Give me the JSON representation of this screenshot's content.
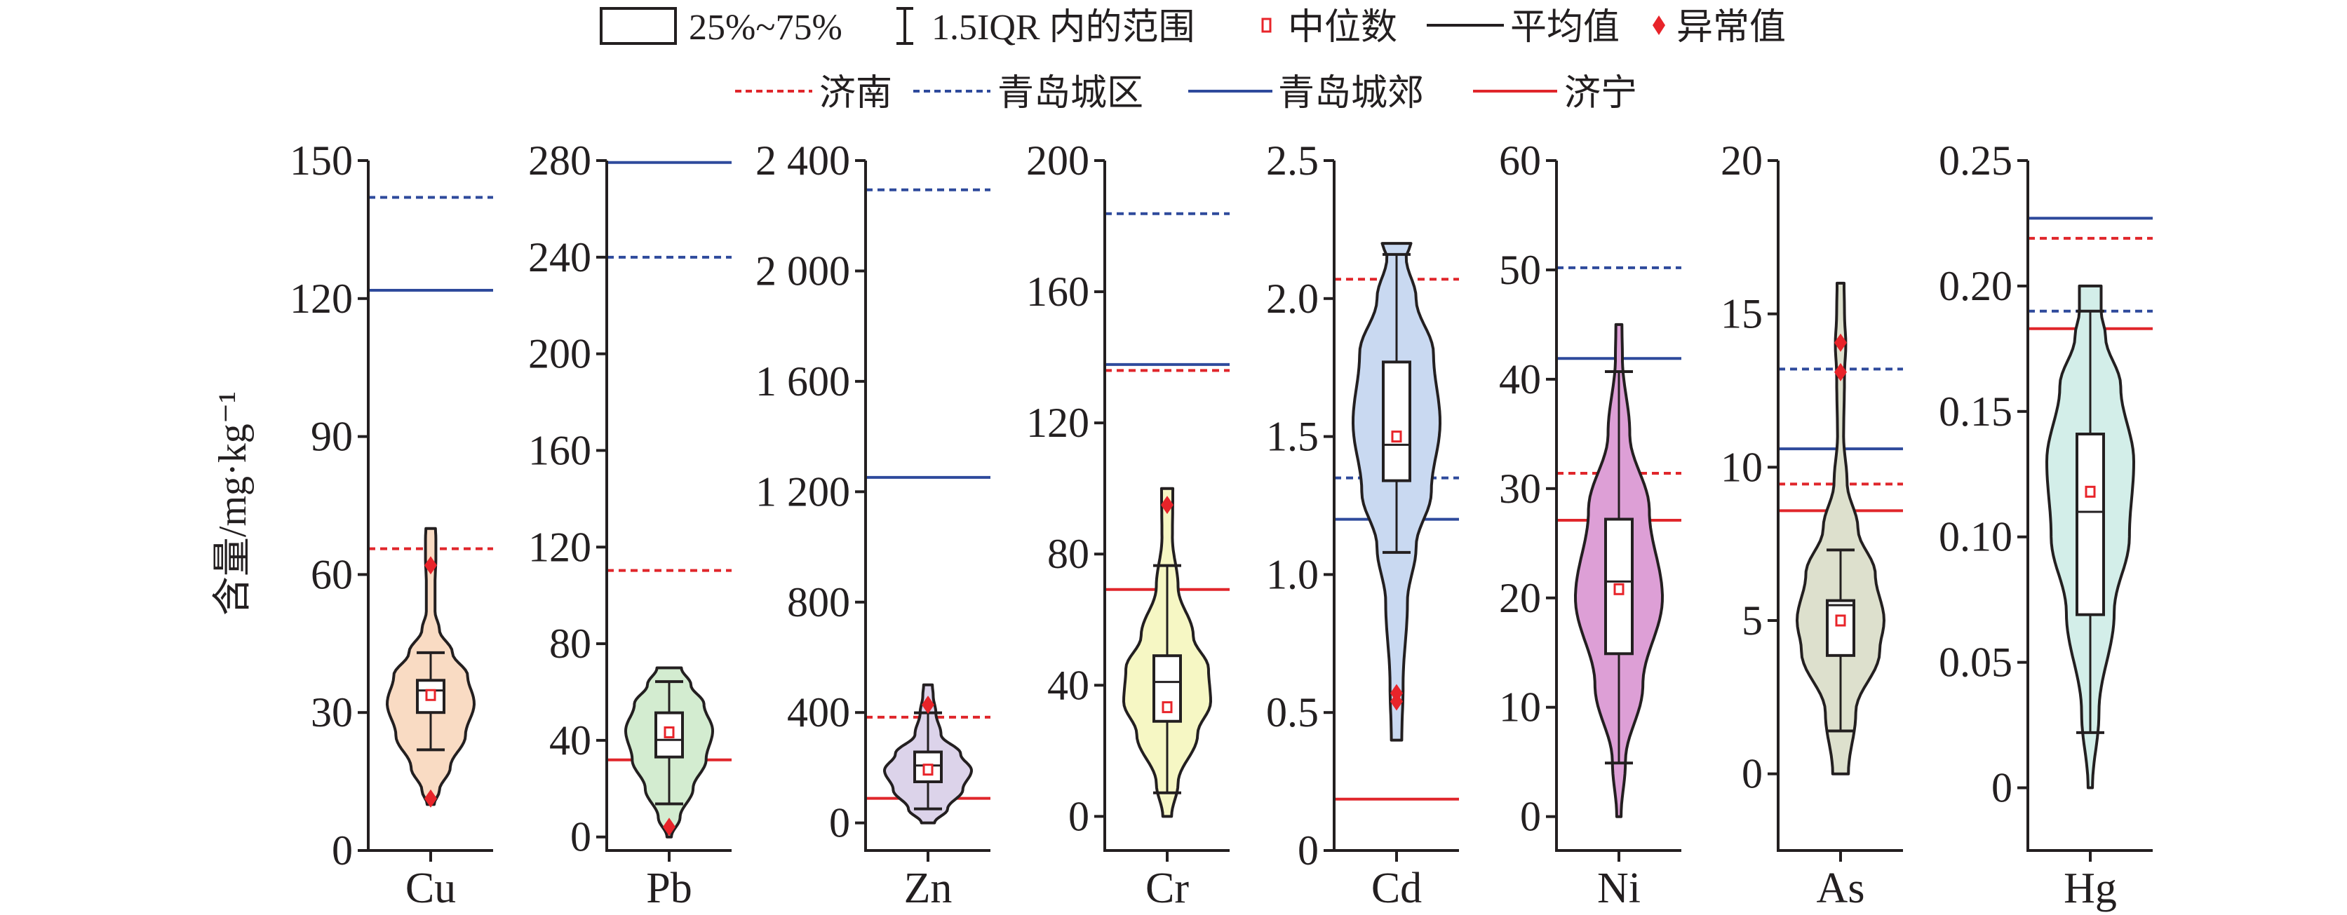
{
  "legend": {
    "row1": {
      "box": "25%~75%",
      "whisker": "1.5IQR 内的范围",
      "median": "中位数",
      "mean": "平均值",
      "outlier": "异常值"
    },
    "row2": {
      "jinan": "济南",
      "qingdao_urban": "青岛城区",
      "qingdao_suburb": "青岛城郊",
      "jining": "济宁"
    }
  },
  "colors": {
    "blue": "#2e4a9c",
    "red": "#e0262b",
    "axis": "#231f20",
    "marker": "#e8242a"
  },
  "chart_data": {
    "type": "violin",
    "ylabel": "含量/mg·kg⁻¹",
    "reference_lines": {
      "jinan": {
        "color": "red",
        "style": "dashed"
      },
      "qingdao_urban": {
        "color": "blue",
        "style": "dashed"
      },
      "qingdao_suburb": {
        "color": "blue",
        "style": "solid"
      },
      "jining": {
        "color": "red",
        "style": "solid"
      }
    },
    "panels": [
      {
        "name": "Cu",
        "fill": "#f9dbc3",
        "ylim": [
          0,
          150
        ],
        "ticks": [
          {
            "v": 0,
            "label": "0"
          },
          {
            "v": 30,
            "label": "30"
          },
          {
            "v": 60,
            "label": "60"
          },
          {
            "v": 90,
            "label": "90"
          },
          {
            "v": 120,
            "label": "120"
          },
          {
            "v": 150,
            "label": "150"
          }
        ],
        "min": 10,
        "max": 70,
        "whisker_low": 21.9,
        "whisker_high": 43,
        "q1": 30,
        "q3": 37,
        "median": 34.8,
        "mean": 33.8,
        "outliers": [
          62,
          11.3
        ],
        "refs": {
          "jinan": 65.6,
          "qingdao_urban": 142,
          "qingdao_suburb": 121.8,
          "jining": null
        },
        "density": [
          [
            10,
            0.08
          ],
          [
            13,
            0.2
          ],
          [
            18,
            0.45
          ],
          [
            25,
            0.8
          ],
          [
            32,
            1
          ],
          [
            38,
            0.85
          ],
          [
            43,
            0.5
          ],
          [
            48,
            0.2
          ],
          [
            52,
            0.1
          ],
          [
            58,
            0.1
          ],
          [
            64,
            0.12
          ],
          [
            68,
            0.12
          ],
          [
            70,
            0.11
          ]
        ]
      },
      {
        "name": "Pb",
        "fill": "#d3ecd0",
        "ylim": [
          -5.6,
          280
        ],
        "ticks": [
          {
            "v": 0,
            "label": "0"
          },
          {
            "v": 40,
            "label": "40"
          },
          {
            "v": 80,
            "label": "80"
          },
          {
            "v": 120,
            "label": "120"
          },
          {
            "v": 160,
            "label": "160"
          },
          {
            "v": 200,
            "label": "200"
          },
          {
            "v": 240,
            "label": "240"
          },
          {
            "v": 280,
            "label": "280"
          }
        ],
        "min": 0,
        "max": 70,
        "whisker_low": 13.7,
        "whisker_high": 64.3,
        "q1": 33.1,
        "q3": 51.4,
        "median": 40.2,
        "mean": 43.3,
        "outliers": [
          4.2
        ],
        "refs": {
          "jinan": 110.3,
          "qingdao_urban": 240,
          "qingdao_suburb": 279.2,
          "jining": 31.9
        },
        "density": [
          [
            0,
            0.05
          ],
          [
            8,
            0.25
          ],
          [
            20,
            0.55
          ],
          [
            32,
            0.85
          ],
          [
            44,
            1
          ],
          [
            55,
            0.8
          ],
          [
            63,
            0.5
          ],
          [
            70,
            0.28
          ]
        ]
      },
      {
        "name": "Zn",
        "fill": "#dcd3ea",
        "ylim": [
          -100,
          2400
        ],
        "ticks": [
          {
            "v": 0,
            "label": "0"
          },
          {
            "v": 400,
            "label": "400"
          },
          {
            "v": 800,
            "label": "800"
          },
          {
            "v": 1200,
            "label": "1 200"
          },
          {
            "v": 1600,
            "label": "1 600"
          },
          {
            "v": 2000,
            "label": "2 000"
          },
          {
            "v": 2400,
            "label": "2 400"
          }
        ],
        "min": 0,
        "max": 500,
        "whisker_low": 51,
        "whisker_high": 399,
        "q1": 149,
        "q3": 257,
        "median": 208,
        "mean": 193,
        "outliers": [
          428
        ],
        "refs": {
          "jinan": 383,
          "qingdao_urban": 2294,
          "qingdao_suburb": 1252,
          "jining": 89
        },
        "density": [
          [
            0,
            0.15
          ],
          [
            50,
            0.45
          ],
          [
            120,
            0.8
          ],
          [
            190,
            1
          ],
          [
            250,
            0.75
          ],
          [
            320,
            0.3
          ],
          [
            400,
            0.18
          ],
          [
            460,
            0.12
          ],
          [
            500,
            0.1
          ]
        ]
      },
      {
        "name": "Cr",
        "fill": "#f6f7c4",
        "ylim": [
          -10.4,
          200
        ],
        "ticks": [
          {
            "v": 0,
            "label": "0"
          },
          {
            "v": 40,
            "label": "40"
          },
          {
            "v": 80,
            "label": "80"
          },
          {
            "v": 120,
            "label": "120"
          },
          {
            "v": 160,
            "label": "160"
          },
          {
            "v": 200,
            "label": "200"
          }
        ],
        "min": 0,
        "max": 100,
        "whisker_low": 7.2,
        "whisker_high": 76.5,
        "q1": 29,
        "q3": 49,
        "median": 41,
        "mean": 33.3,
        "outliers": [
          95
        ],
        "refs": {
          "jinan": 136,
          "qingdao_urban": 183.8,
          "qingdao_suburb": 137.8,
          "jining": 69.2
        },
        "density": [
          [
            0,
            0.1
          ],
          [
            10,
            0.25
          ],
          [
            25,
            0.7
          ],
          [
            35,
            1
          ],
          [
            45,
            0.95
          ],
          [
            55,
            0.6
          ],
          [
            70,
            0.25
          ],
          [
            85,
            0.12
          ],
          [
            100,
            0.13
          ]
        ]
      },
      {
        "name": "Cd",
        "fill": "#c9d9f1",
        "ylim": [
          0,
          2.5
        ],
        "ticks": [
          {
            "v": 0,
            "label": "0"
          },
          {
            "v": 0.5,
            "label": "0.5"
          },
          {
            "v": 1,
            "label": "1.0"
          },
          {
            "v": 1.5,
            "label": "1.5"
          },
          {
            "v": 2,
            "label": "2.0"
          },
          {
            "v": 2.5,
            "label": "2.5"
          }
        ],
        "min": 0.4,
        "max": 2.2,
        "whisker_low": 1.08,
        "whisker_high": 2.16,
        "q1": 1.34,
        "q3": 1.77,
        "median": 1.47,
        "mean": 1.5,
        "outliers": [
          0.57,
          0.54
        ],
        "refs": {
          "jinan": 2.07,
          "qingdao_urban": 1.35,
          "qingdao_suburb": 1.2,
          "jining": 0.186
        },
        "density": [
          [
            0.4,
            0.12
          ],
          [
            0.6,
            0.15
          ],
          [
            0.9,
            0.25
          ],
          [
            1.1,
            0.45
          ],
          [
            1.3,
            0.8
          ],
          [
            1.55,
            1
          ],
          [
            1.8,
            0.85
          ],
          [
            2.0,
            0.45
          ],
          [
            2.15,
            0.22
          ],
          [
            2.2,
            0.33
          ]
        ]
      },
      {
        "name": "Ni",
        "fill": "#dd9fd6",
        "ylim": [
          -3.1,
          60
        ],
        "ticks": [
          {
            "v": 0,
            "label": "0"
          },
          {
            "v": 10,
            "label": "10"
          },
          {
            "v": 20,
            "label": "20"
          },
          {
            "v": 30,
            "label": "30"
          },
          {
            "v": 40,
            "label": "40"
          },
          {
            "v": 50,
            "label": "50"
          },
          {
            "v": 60,
            "label": "60"
          }
        ],
        "min": 0,
        "max": 45,
        "whisker_low": 4.9,
        "whisker_high": 40.7,
        "q1": 14.9,
        "q3": 27.2,
        "median": 21.5,
        "mean": 20.8,
        "outliers": [],
        "refs": {
          "jinan": 31.4,
          "qingdao_urban": 50.2,
          "qingdao_suburb": 41.9,
          "jining": 27.1
        },
        "density": [
          [
            0,
            0.05
          ],
          [
            5,
            0.15
          ],
          [
            12,
            0.55
          ],
          [
            20,
            1
          ],
          [
            28,
            0.7
          ],
          [
            35,
            0.25
          ],
          [
            42,
            0.08
          ],
          [
            45,
            0.07
          ]
        ]
      },
      {
        "name": "As",
        "fill": "#dde0cd",
        "ylim": [
          -2.5,
          20
        ],
        "ticks": [
          {
            "v": 0,
            "label": "0"
          },
          {
            "v": 5,
            "label": "5"
          },
          {
            "v": 10,
            "label": "10"
          },
          {
            "v": 15,
            "label": "15"
          },
          {
            "v": 20,
            "label": "20"
          }
        ],
        "min": 0,
        "max": 16,
        "whisker_low": 1.4,
        "whisker_high": 7.3,
        "q1": 3.86,
        "q3": 5.65,
        "median": 5.5,
        "mean": 5.0,
        "outliers": [
          14.06,
          13.1
        ],
        "refs": {
          "jinan": 9.45,
          "qingdao_urban": 13.2,
          "qingdao_suburb": 10.6,
          "jining": 8.58
        },
        "density": [
          [
            0,
            0.18
          ],
          [
            2,
            0.35
          ],
          [
            4,
            0.9
          ],
          [
            5,
            1
          ],
          [
            6.5,
            0.8
          ],
          [
            8,
            0.4
          ],
          [
            9.5,
            0.15
          ],
          [
            11,
            0.07
          ],
          [
            13,
            0.09
          ],
          [
            14,
            0.12
          ],
          [
            15,
            0.09
          ],
          [
            16,
            0.08
          ]
        ]
      },
      {
        "name": "Hg",
        "fill": "#d3eee9",
        "ylim": [
          -0.025,
          0.25
        ],
        "ticks": [
          {
            "v": 0,
            "label": "0"
          },
          {
            "v": 0.05,
            "label": "0.05"
          },
          {
            "v": 0.1,
            "label": "0.10"
          },
          {
            "v": 0.15,
            "label": "0.15"
          },
          {
            "v": 0.2,
            "label": "0.20"
          },
          {
            "v": 0.25,
            "label": "0.25"
          }
        ],
        "min": 0,
        "max": 0.2,
        "whisker_low": 0.022,
        "whisker_high": 0.19,
        "q1": 0.069,
        "q3": 0.141,
        "median": 0.11,
        "mean": 0.118,
        "outliers": [],
        "refs": {
          "jinan": 0.219,
          "qingdao_urban": 0.19,
          "qingdao_suburb": 0.227,
          "jining": 0.183
        },
        "density": [
          [
            0,
            0.05
          ],
          [
            0.03,
            0.2
          ],
          [
            0.07,
            0.55
          ],
          [
            0.1,
            0.9
          ],
          [
            0.13,
            1
          ],
          [
            0.16,
            0.7
          ],
          [
            0.18,
            0.35
          ],
          [
            0.19,
            0.25
          ],
          [
            0.2,
            0.25
          ]
        ]
      }
    ]
  }
}
